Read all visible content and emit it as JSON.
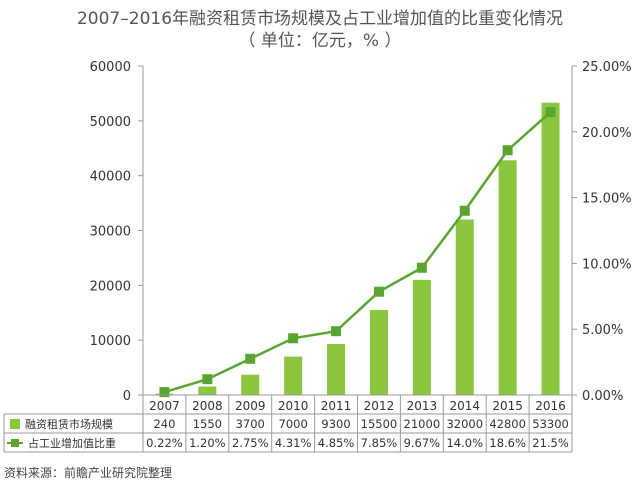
{
  "chart_data": {
    "type": "bar",
    "title": "2007–2016年融资租赁市场规模及占工业增加值的比重变化情况",
    "subtitle": "（ 单位：亿元，% ）",
    "categories": [
      "2007",
      "2008",
      "2009",
      "2010",
      "2011",
      "2012",
      "2013",
      "2014",
      "2015",
      "2016"
    ],
    "series": [
      {
        "name": "融资租赁市场规模",
        "type": "bar",
        "axis": "left",
        "color": "#8cc63f",
        "values": [
          240,
          1550,
          3700,
          7000,
          9300,
          15500,
          21000,
          32000,
          42800,
          53300
        ]
      },
      {
        "name": "占工业增加值比重",
        "type": "line",
        "axis": "right",
        "color": "#5aa531",
        "values": [
          0.22,
          1.2,
          2.75,
          4.31,
          4.85,
          7.85,
          9.67,
          14.0,
          18.6,
          21.5
        ]
      }
    ],
    "y_left": {
      "min": 0,
      "max": 60000,
      "ticks": [
        "0",
        "10000",
        "20000",
        "30000",
        "40000",
        "50000",
        "60000"
      ]
    },
    "y_right": {
      "min": 0,
      "max": 25,
      "ticks": [
        "0.00%",
        "5.00%",
        "10.00%",
        "15.00%",
        "20.00%",
        "25.00%"
      ]
    },
    "table": {
      "rows": [
        [
          "240",
          "1550",
          "3700",
          "7000",
          "9300",
          "15500",
          "21000",
          "32000",
          "42800",
          "53300"
        ],
        [
          "0.22%",
          "1.20%",
          "2.75%",
          "4.31%",
          "4.85%",
          "7.85%",
          "9.67%",
          "14.0%",
          "18.6%",
          "21.5%"
        ]
      ]
    },
    "grid": false,
    "legend": "data-table"
  },
  "source": "资料来源：前瞻产业研究院整理"
}
